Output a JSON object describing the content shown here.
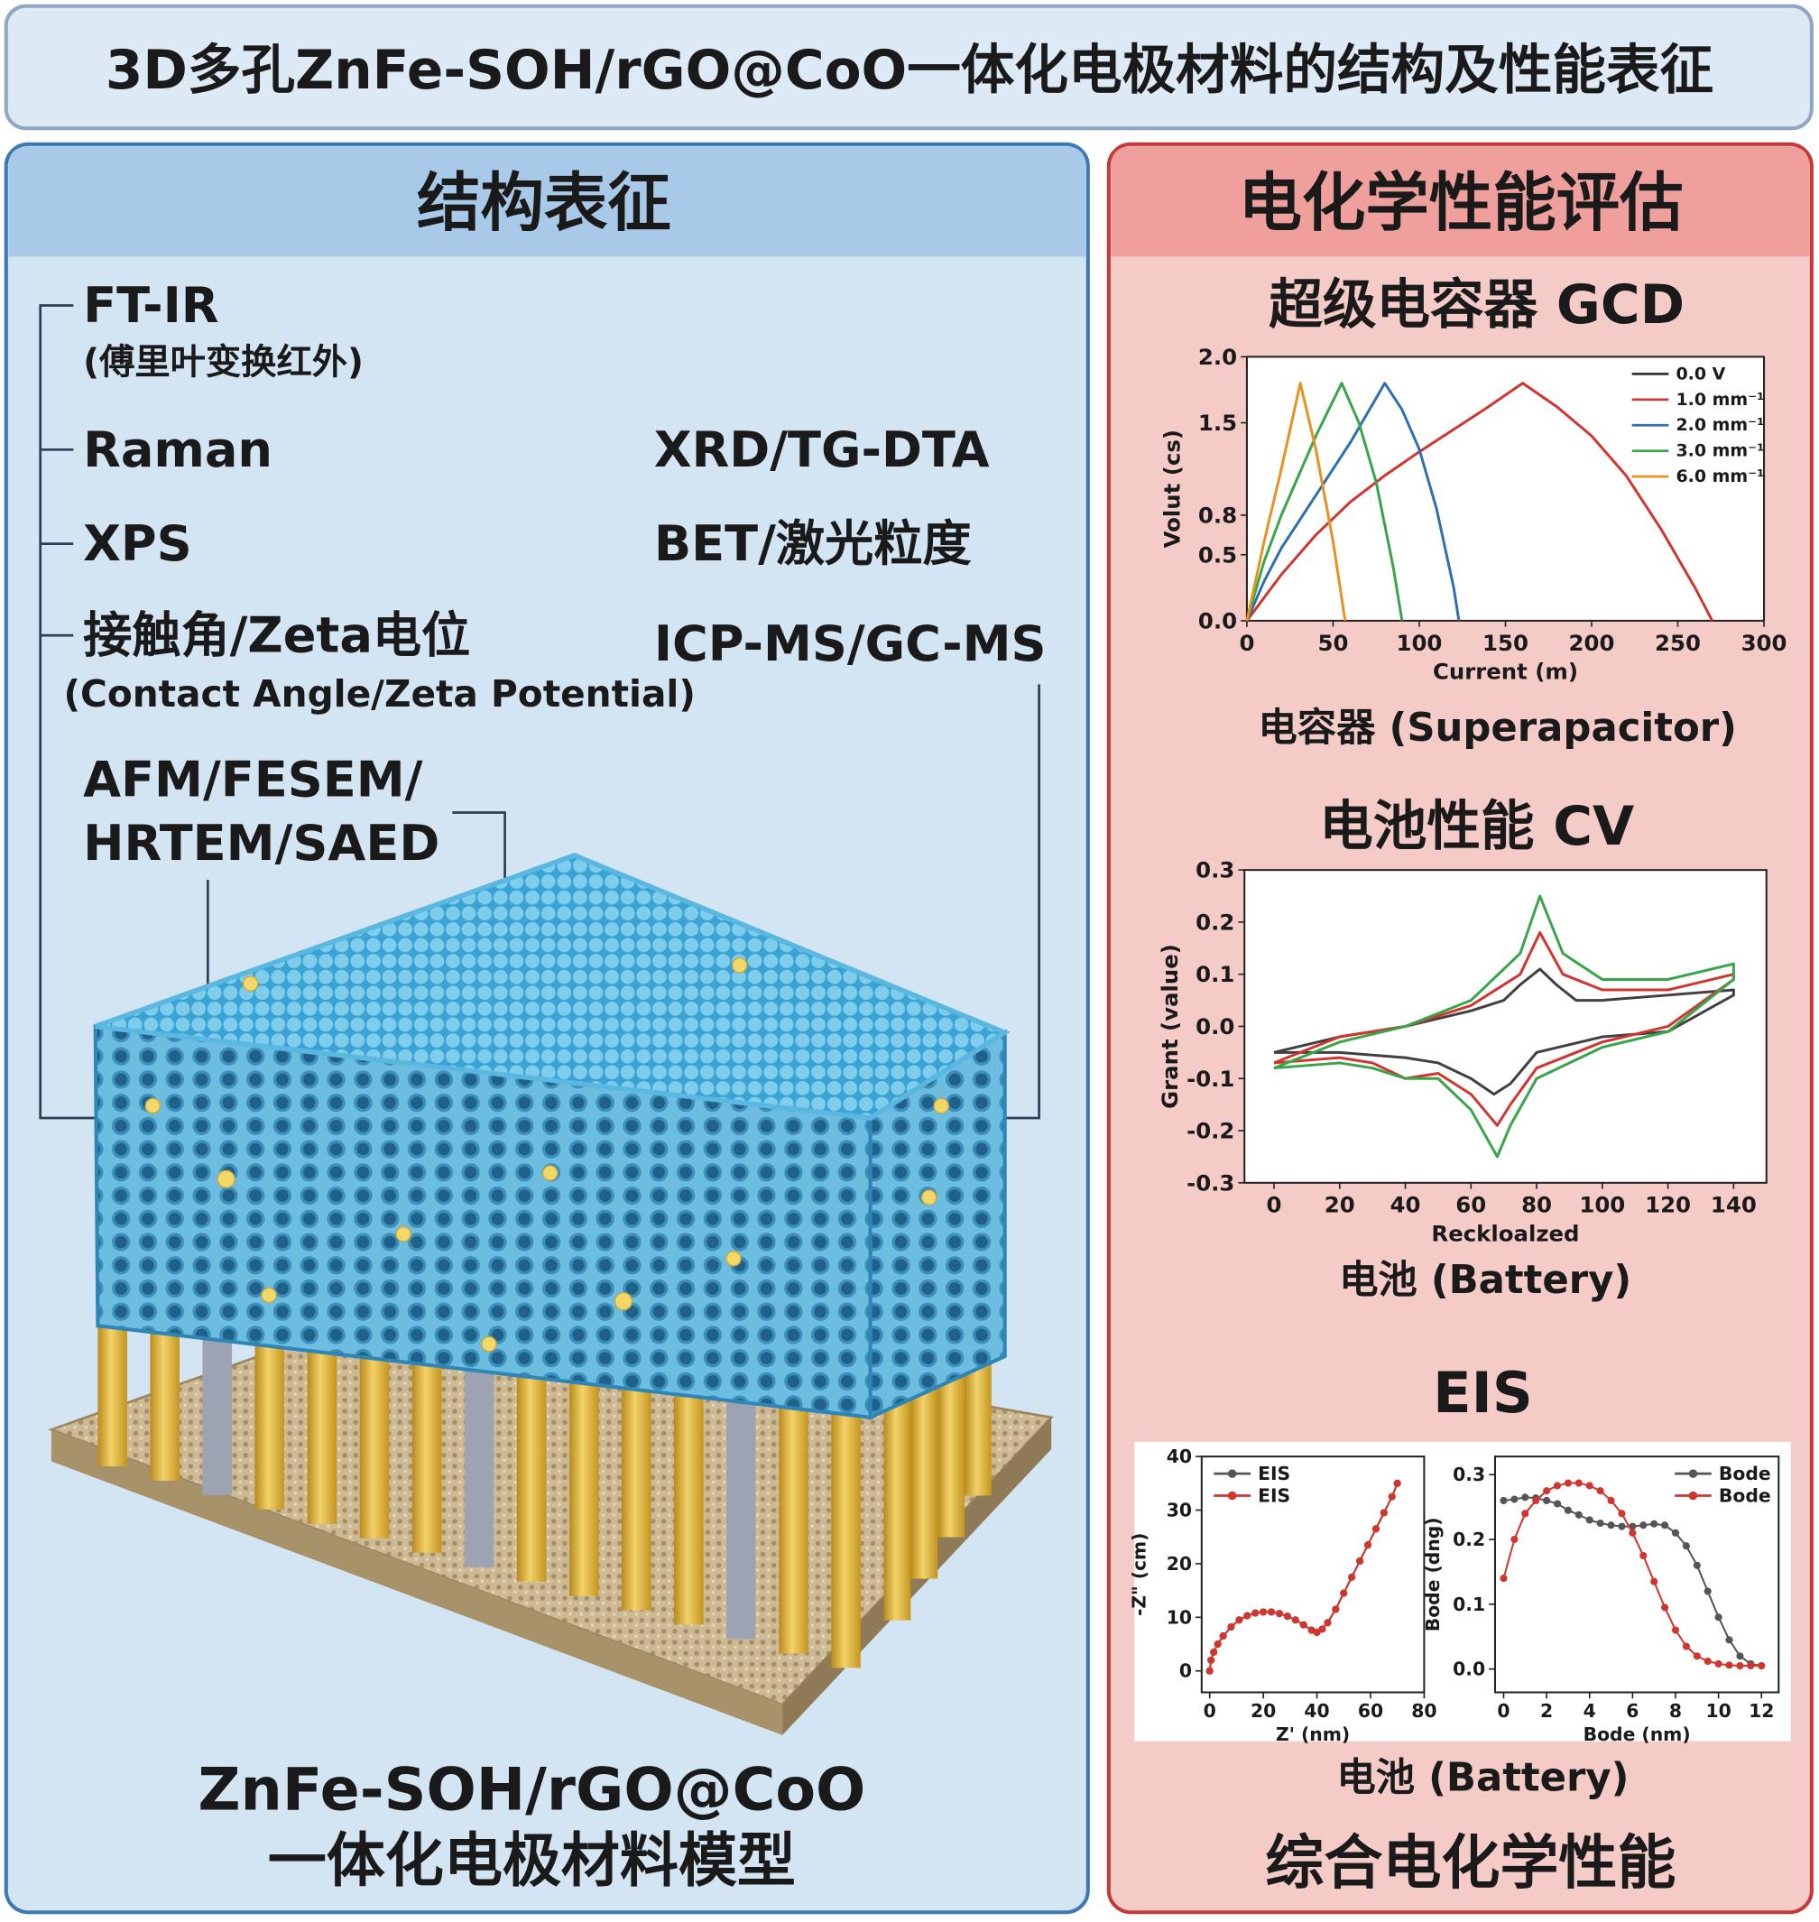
{
  "header": {
    "title": "3D多孔ZnFe-SOH/rGO@CoO一体化电极材料的结构及性能表征"
  },
  "structure_panel": {
    "title": "结构表征",
    "techniques_left": [
      "FT-IR",
      "Raman",
      "XPS",
      "接触角/Zeta电位",
      "AFM/FESEM/",
      "HRTEM/SAED"
    ],
    "notes": [
      "(傅里叶变换红外)",
      "(Contact Angle/Zeta Potential)"
    ],
    "techniques_right": [
      "XRD/TG-DTA",
      "BET/激光粒度",
      "ICP-MS/GC-MS"
    ],
    "model_caption": [
      "ZnFe-SOH/rGO@CoO",
      "一体化电极材料模型"
    ]
  },
  "performance_panel": {
    "title": "电化学性能评估",
    "gcd_heading": "超级电容器 GCD",
    "gcd_caption": "电容器 (Superapacitor)",
    "cv_heading": "电池性能 CV",
    "cv_caption": "电池 (Battery)",
    "eis_heading": "EIS",
    "eis_caption": "电池 (Battery)",
    "footer": "综合电化学性能"
  },
  "chart_data": [
    {
      "type": "line",
      "x_label": "Current (m)",
      "y_label": "Volut (cs)",
      "xlim": [
        0,
        300
      ],
      "ylim": [
        0,
        2
      ],
      "xticks": [
        0,
        50,
        100,
        150,
        200,
        250,
        300
      ],
      "yticks": [
        {
          "value": 0,
          "label": "0.0"
        },
        0.5,
        0.8,
        1.5,
        {
          "value": 2,
          "label": "2.0"
        }
      ],
      "legend": "upper right",
      "markers": false,
      "series": [
        {
          "name": "0.0 V",
          "color": "#333333",
          "x": [
            0
          ],
          "values": [
            0
          ]
        },
        {
          "name": "1.0 mm⁻¹",
          "color": "#d0352f",
          "x": [
            0,
            20,
            40,
            60,
            80,
            100,
            120,
            140,
            160,
            180,
            200,
            220,
            240,
            260,
            270
          ],
          "values": [
            0,
            0.35,
            0.65,
            0.9,
            1.1,
            1.28,
            1.45,
            1.62,
            1.8,
            1.62,
            1.4,
            1.1,
            0.7,
            0.25,
            0
          ]
        },
        {
          "name": "2.0 mm⁻¹",
          "color": "#2f6fb0",
          "x": [
            0,
            10,
            20,
            40,
            60,
            80,
            90,
            100,
            110,
            120,
            123
          ],
          "values": [
            0,
            0.3,
            0.55,
            0.95,
            1.35,
            1.8,
            1.6,
            1.3,
            0.85,
            0.25,
            0
          ]
        },
        {
          "name": "3.0 mm⁻¹",
          "color": "#3aa44a",
          "x": [
            0,
            10,
            20,
            30,
            40,
            55,
            65,
            75,
            85,
            90
          ],
          "values": [
            0,
            0.45,
            0.8,
            1.1,
            1.4,
            1.8,
            1.5,
            1.05,
            0.4,
            0
          ]
        },
        {
          "name": "6.0 mm⁻¹",
          "color": "#e8911f",
          "x": [
            0,
            10,
            20,
            31,
            40,
            50,
            57
          ],
          "values": [
            0,
            0.6,
            1.15,
            1.8,
            1.3,
            0.6,
            0
          ]
        }
      ]
    },
    {
      "type": "line",
      "x_label": "Reckloalzed",
      "y_label": "Grant (value)",
      "xlim": [
        -9,
        150
      ],
      "ylim": [
        -0.3,
        0.3
      ],
      "xticks": [
        0,
        20,
        40,
        60,
        80,
        100,
        120,
        140
      ],
      "yticks": [
        -0.3,
        -0.2,
        -0.1,
        {
          "value": 0,
          "label": "0.0"
        },
        0.1,
        0.2,
        0.3
      ],
      "markers": false,
      "series": [
        {
          "color": "#404040",
          "x": [
            0,
            20,
            40,
            60,
            70,
            75,
            81,
            86,
            92,
            100,
            120,
            140,
            140,
            120,
            100,
            80,
            72,
            67,
            60,
            50,
            40,
            20,
            0
          ],
          "values": [
            -0.05,
            -0.02,
            0.0,
            0.03,
            0.05,
            0.08,
            0.11,
            0.08,
            0.05,
            0.05,
            0.06,
            0.07,
            0.06,
            -0.01,
            -0.02,
            -0.05,
            -0.11,
            -0.13,
            -0.1,
            -0.07,
            -0.06,
            -0.05,
            -0.05
          ]
        },
        {
          "color": "#d0352f",
          "x": [
            0,
            20,
            40,
            60,
            75,
            81,
            88,
            100,
            120,
            140,
            140,
            120,
            100,
            80,
            72,
            68,
            60,
            50,
            40,
            30,
            20,
            0
          ],
          "values": [
            -0.07,
            -0.02,
            0.0,
            0.04,
            0.1,
            0.18,
            0.1,
            0.07,
            0.07,
            0.1,
            0.09,
            0.0,
            -0.03,
            -0.08,
            -0.15,
            -0.19,
            -0.13,
            -0.09,
            -0.1,
            -0.07,
            -0.06,
            -0.07
          ]
        },
        {
          "color": "#3aa44a",
          "x": [
            0,
            20,
            40,
            60,
            75,
            81,
            88,
            100,
            120,
            140,
            140,
            120,
            100,
            80,
            72,
            68,
            60,
            50,
            40,
            30,
            20,
            0
          ],
          "values": [
            -0.08,
            -0.03,
            0.0,
            0.05,
            0.14,
            0.25,
            0.14,
            0.09,
            0.09,
            0.12,
            0.09,
            -0.01,
            -0.04,
            -0.1,
            -0.19,
            -0.25,
            -0.16,
            -0.1,
            -0.1,
            -0.08,
            -0.07,
            -0.08
          ]
        }
      ]
    },
    {
      "type": "line",
      "x_label": "Z' (nm)",
      "y_label": "-Z\" (cm)",
      "xlim": [
        -3,
        80
      ],
      "ylim": [
        -4,
        40
      ],
      "xticks": [
        0,
        20,
        40,
        60,
        80
      ],
      "yticks": [
        0,
        10,
        20,
        30,
        40
      ],
      "legend": "upper left",
      "markers": true,
      "series": [
        {
          "name": "EIS",
          "color": "#555555",
          "x": [
            0,
            0.5,
            1.5,
            3,
            5,
            8,
            11,
            14,
            17,
            20,
            23,
            26,
            29,
            32,
            35,
            38,
            40,
            42,
            44,
            47,
            50,
            53,
            56,
            59,
            62,
            65,
            68,
            70
          ],
          "values": [
            0,
            2,
            3.5,
            5,
            6.5,
            8.2,
            9.5,
            10.3,
            10.8,
            11,
            11,
            10.7,
            10.2,
            9.5,
            8.6,
            7.6,
            7.2,
            7.8,
            9,
            11.5,
            14.5,
            17.5,
            20.5,
            23.5,
            26.5,
            29.5,
            32.5,
            35
          ]
        },
        {
          "name": "EIS",
          "color": "#d0352f",
          "x": [
            0,
            0.5,
            1.5,
            3,
            5,
            8,
            11,
            14,
            17,
            20,
            23,
            26,
            29,
            32,
            35,
            38,
            40,
            42,
            44,
            47,
            50,
            53,
            56,
            59,
            62,
            65,
            68,
            70
          ],
          "values": [
            0,
            2,
            3.5,
            5,
            6.5,
            8.2,
            9.5,
            10.3,
            10.8,
            11,
            11,
            10.7,
            10.2,
            9.5,
            8.6,
            7.6,
            7.2,
            7.8,
            9,
            11.5,
            14.5,
            17.5,
            20.5,
            23.5,
            26.5,
            29.5,
            32.5,
            35
          ]
        }
      ]
    },
    {
      "type": "line",
      "x_label": "Bode (nm)",
      "y_label": "Bode (dng)",
      "xlim": [
        -0.4,
        12.8
      ],
      "ylim": [
        -0.036,
        0.328
      ],
      "xticks": [
        0,
        2,
        4,
        6,
        8,
        10,
        12
      ],
      "yticks": [
        {
          "value": 0,
          "label": "0.0"
        },
        0.1,
        0.2,
        0.3
      ],
      "legend": "upper right",
      "markers": true,
      "series": [
        {
          "name": "Bode",
          "color": "#555555",
          "x": [
            0,
            0.5,
            1,
            1.5,
            2,
            2.5,
            3,
            3.5,
            4,
            4.5,
            5,
            5.5,
            6,
            6.5,
            7,
            7.5,
            8,
            8.5,
            9,
            9.5,
            10,
            10.5,
            11,
            11.5,
            12
          ],
          "values": [
            0.26,
            0.262,
            0.265,
            0.264,
            0.26,
            0.255,
            0.245,
            0.238,
            0.23,
            0.225,
            0.222,
            0.22,
            0.22,
            0.222,
            0.224,
            0.222,
            0.21,
            0.19,
            0.16,
            0.12,
            0.08,
            0.045,
            0.02,
            0.008,
            0.005
          ]
        },
        {
          "name": "Bode",
          "color": "#d0352f",
          "x": [
            0,
            0.5,
            1,
            1.5,
            2,
            2.5,
            3,
            3.5,
            4,
            4.5,
            5,
            5.5,
            6,
            6.5,
            7,
            7.5,
            8,
            8.5,
            9,
            9.5,
            10,
            10.5,
            11,
            11.5,
            12
          ],
          "values": [
            0.14,
            0.2,
            0.24,
            0.26,
            0.275,
            0.283,
            0.287,
            0.287,
            0.283,
            0.275,
            0.26,
            0.24,
            0.21,
            0.175,
            0.135,
            0.095,
            0.06,
            0.035,
            0.02,
            0.012,
            0.008,
            0.006,
            0.005,
            0.005,
            0.005
          ]
        }
      ]
    }
  ]
}
